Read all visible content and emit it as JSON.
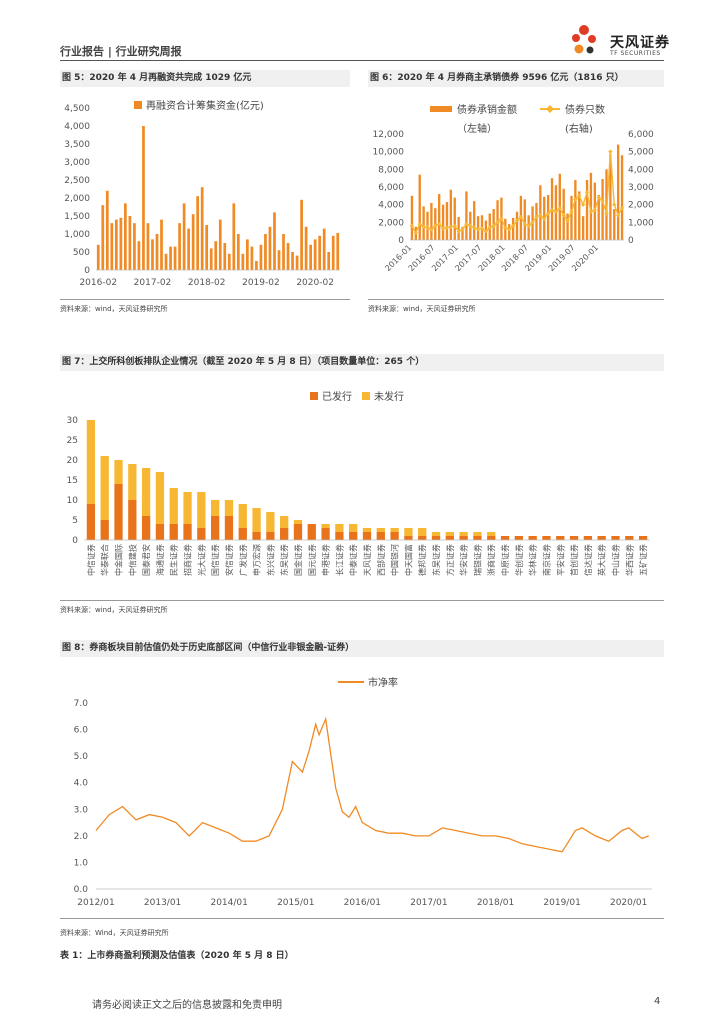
{
  "header": {
    "title": "行业报告 | 行业研究周报",
    "logo_cn": "天风证券",
    "logo_en": "TF SECURITIES"
  },
  "colors": {
    "orange": "#f08a24",
    "yellow": "#f7b733",
    "dark_orange": "#e8731a"
  },
  "fig5": {
    "title": "图 5：2020 年 4 月再融资共完成 1029 亿元",
    "source": "资料来源：wind，天风证券研究所",
    "chart_data": {
      "type": "bar",
      "title": "",
      "legend": [
        "再融资合计筹集资金(亿元)"
      ],
      "y_ticks": [
        "4,500",
        "4,000",
        "3,500",
        "3,000",
        "2,500",
        "2,000",
        "1,500",
        "1,000",
        "500",
        "0"
      ],
      "x_ticks": [
        "2016-02",
        "2017-02",
        "2018-02",
        "2019-02",
        "2020-02"
      ],
      "ylim": [
        0,
        4500
      ],
      "values": [
        700,
        1800,
        2200,
        1300,
        1400,
        1450,
        1850,
        1500,
        1300,
        800,
        4000,
        1300,
        850,
        1000,
        1400,
        450,
        650,
        650,
        1300,
        1850,
        1150,
        1550,
        2050,
        2300,
        1250,
        600,
        800,
        1400,
        750,
        450,
        1850,
        1000,
        450,
        850,
        650,
        250,
        700,
        1000,
        1200,
        1600,
        550,
        1000,
        750,
        500,
        400,
        1950,
        1200,
        700,
        850,
        950,
        1150,
        500,
        950,
        1029
      ]
    }
  },
  "fig6": {
    "title": "图 6：2020 年 4 月券商主承销债券 9596 亿元（1816 只）",
    "source": "资料来源：wind，天风证券研究所",
    "chart_data": {
      "type": "bar+line",
      "legend": [
        "债券承销金额",
        "债券只数"
      ],
      "legend_sub": [
        "（左轴）",
        "(右轴)"
      ],
      "y_left_ticks": [
        "12,000",
        "10,000",
        "8,000",
        "6,000",
        "4,000",
        "2,000",
        "0"
      ],
      "y_right_ticks": [
        "6,000",
        "5,000",
        "4,000",
        "3,000",
        "2,000",
        "1,000",
        "0"
      ],
      "x_ticks": [
        "2016-01",
        "2016-07",
        "2017-01",
        "2017-07",
        "2018-01",
        "2018-07",
        "2019-01",
        "2019-07",
        "2020-01"
      ],
      "ylim_left": [
        0,
        12000
      ],
      "ylim_right": [
        0,
        6000
      ],
      "series": [
        {
          "name": "债券承销金额",
          "values": [
            5000,
            1500,
            7400,
            3800,
            3200,
            4200,
            3600,
            5200,
            4000,
            4300,
            5700,
            4800,
            2600,
            1500,
            5500,
            3200,
            4400,
            2700,
            2800,
            2200,
            3000,
            3500,
            4500,
            4800,
            2400,
            1800,
            2500,
            3200,
            5000,
            4600,
            2800,
            3800,
            4200,
            6200,
            4900,
            5100,
            7000,
            6200,
            7500,
            5800,
            3000,
            5000,
            6800,
            5500,
            2700,
            6800,
            7600,
            6500,
            5100,
            6900,
            8000,
            9700,
            3500,
            10800,
            9596
          ]
        },
        {
          "name": "债券只数",
          "values": [
            800,
            400,
            900,
            750,
            700,
            600,
            800,
            900,
            650,
            700,
            750,
            800,
            500,
            600,
            900,
            800,
            700,
            600,
            650,
            500,
            700,
            800,
            1000,
            1200,
            700,
            600,
            800,
            1100,
            1300,
            900,
            800,
            1000,
            1300,
            1400,
            1200,
            1500,
            1700,
            1600,
            1800,
            1400,
            1100,
            1600,
            2300,
            2500,
            2000,
            2700,
            1600,
            1700,
            2400,
            2200,
            1500,
            5000,
            2000,
            1400,
            1816
          ]
        }
      ]
    }
  },
  "fig7": {
    "title": "图 7：上交所科创板排队企业情况（截至 2020 年 5 月 8 日）（项目数量单位：265 个）",
    "source": "资料来源：wind，天风证券研究所",
    "chart_data": {
      "type": "stacked-bar",
      "legend": [
        "已发行",
        "未发行"
      ],
      "y_ticks": [
        "30",
        "25",
        "20",
        "15",
        "10",
        "5",
        "0"
      ],
      "ylim": [
        0,
        30
      ],
      "categories": [
        "中信证券",
        "华泰联合",
        "中金国际",
        "中信建投",
        "国泰君安",
        "海通证券",
        "民生证券",
        "招商证券",
        "光大证券",
        "国信证券",
        "安信证券",
        "广发证券",
        "申万宏源",
        "东兴证券",
        "东吴证券",
        "国金证券",
        "国元证券",
        "申港证券",
        "长江证券",
        "中泰证券",
        "天风证券",
        "西部证券",
        "中国银河",
        "中天国富",
        "德邦证券",
        "东吴证券",
        "方正证券",
        "华安证券",
        "瑞银证券",
        "浙商证券",
        "中原证券",
        "华创证券",
        "华林证券",
        "南京证券",
        "平安证券",
        "首创证券",
        "信达证券",
        "英大证券",
        "中山证券",
        "华西证券",
        "五矿证券"
      ],
      "series": [
        {
          "name": "已发行",
          "values": [
            9,
            5,
            14,
            10,
            6,
            4,
            4,
            4,
            3,
            6,
            6,
            3,
            2,
            2,
            3,
            4,
            4,
            3,
            2,
            2,
            2,
            2,
            2,
            1,
            1,
            1,
            1,
            1,
            1,
            1,
            1,
            1,
            1,
            1,
            1,
            1,
            1,
            1,
            1,
            1,
            1
          ]
        },
        {
          "name": "未发行",
          "values": [
            21,
            16,
            6,
            9,
            12,
            13,
            9,
            8,
            9,
            4,
            4,
            6,
            6,
            5,
            3,
            1,
            0,
            1,
            2,
            2,
            1,
            1,
            1,
            2,
            2,
            1,
            1,
            1,
            1,
            1,
            0,
            0,
            0,
            0,
            0,
            0,
            0,
            0,
            0,
            0,
            0
          ]
        }
      ]
    }
  },
  "fig8": {
    "title": "图 8：券商板块目前估值仍处于历史底部区间（中信行业非银金融-证券）",
    "source": "资料来源：Wind，天风证券研究所",
    "chart_data": {
      "type": "line",
      "legend": [
        "市净率"
      ],
      "y_ticks": [
        "7.0",
        "6.0",
        "5.0",
        "4.0",
        "3.0",
        "2.0",
        "1.0",
        "0.0"
      ],
      "x_ticks": [
        "2012/01",
        "2013/01",
        "2014/01",
        "2015/01",
        "2016/01",
        "2017/01",
        "2018/01",
        "2019/01",
        "2020/01"
      ],
      "ylim": [
        0,
        7
      ],
      "x": [
        2012.0,
        2012.2,
        2012.4,
        2012.6,
        2012.8,
        2013.0,
        2013.2,
        2013.4,
        2013.6,
        2013.8,
        2014.0,
        2014.2,
        2014.4,
        2014.6,
        2014.8,
        2014.95,
        2015.1,
        2015.2,
        2015.3,
        2015.35,
        2015.45,
        2015.5,
        2015.6,
        2015.7,
        2015.8,
        2015.9,
        2016.0,
        2016.2,
        2016.4,
        2016.6,
        2016.8,
        2017.0,
        2017.2,
        2017.4,
        2017.6,
        2017.8,
        2018.0,
        2018.2,
        2018.4,
        2018.6,
        2018.8,
        2019.0,
        2019.1,
        2019.2,
        2019.3,
        2019.5,
        2019.7,
        2019.9,
        2020.0,
        2020.1,
        2020.2,
        2020.3
      ],
      "values": [
        2.2,
        2.8,
        3.1,
        2.6,
        2.8,
        2.7,
        2.5,
        2.0,
        2.5,
        2.3,
        2.1,
        1.8,
        1.8,
        2.0,
        3.0,
        4.8,
        4.4,
        5.2,
        6.2,
        5.8,
        6.4,
        5.5,
        3.8,
        2.9,
        2.7,
        3.1,
        2.5,
        2.2,
        2.1,
        2.1,
        2.0,
        2.0,
        2.3,
        2.2,
        2.1,
        2.0,
        2.0,
        1.9,
        1.7,
        1.6,
        1.5,
        1.4,
        1.8,
        2.2,
        2.3,
        2.0,
        1.8,
        2.2,
        2.3,
        2.1,
        1.9,
        2.0
      ]
    }
  },
  "table1_title": "表 1：上市券商盈利预测及估值表（2020 年 5 月 8 日）",
  "footer": {
    "text": "请务必阅读正文之后的信息披露和免责申明",
    "page": "4"
  }
}
